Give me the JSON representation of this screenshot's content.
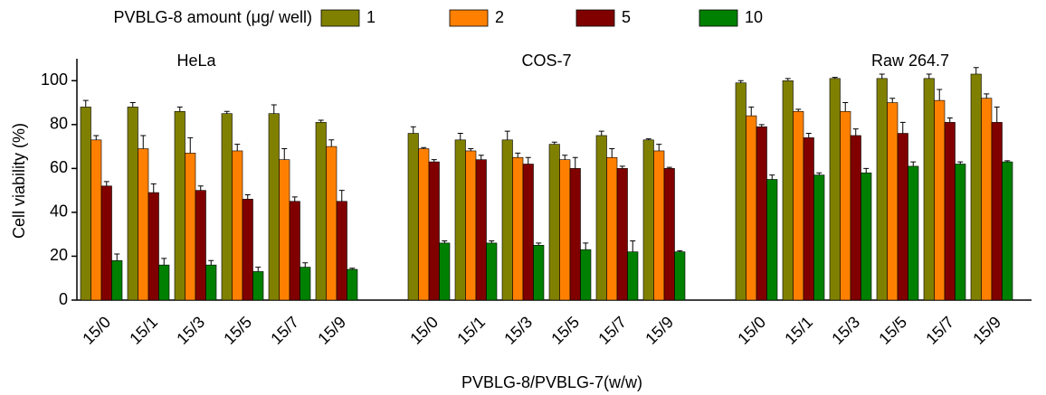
{
  "chart_data": {
    "type": "bar",
    "x_label": "PVBLG-8/PVBLG-7(w/w)",
    "y_label": "Cell viability (%)",
    "legend_title": "PVBLG-8 amount (μg/ well)",
    "group_labels": [
      "HeLa",
      "COS-7",
      "Raw 264.7"
    ],
    "group_size": 6,
    "categories": [
      "15/0",
      "15/1",
      "15/3",
      "15/5",
      "15/7",
      "15/9",
      "15/0",
      "15/1",
      "15/3",
      "15/5",
      "15/7",
      "15/9",
      "15/0",
      "15/1",
      "15/3",
      "15/5",
      "15/7",
      "15/9"
    ],
    "series": [
      {
        "name": "1",
        "color": "#808000",
        "values": [
          88,
          88,
          86,
          85,
          85,
          81,
          76,
          73,
          73,
          71,
          75,
          73,
          99,
          100,
          101,
          101,
          101,
          103
        ],
        "errors": [
          3,
          2,
          2,
          1,
          4,
          1,
          3,
          3,
          4,
          1,
          2,
          0.5,
          1,
          1,
          0.5,
          2,
          2,
          3
        ]
      },
      {
        "name": "2",
        "color": "#ff8000",
        "values": [
          73,
          69,
          67,
          68,
          64,
          70,
          69,
          68,
          65,
          64,
          65,
          68,
          84,
          86,
          86,
          90,
          91,
          92
        ],
        "errors": [
          2,
          6,
          7,
          3,
          5,
          3,
          0.5,
          1,
          2,
          2,
          4,
          3,
          4,
          1,
          4,
          2,
          5,
          2
        ]
      },
      {
        "name": "5",
        "color": "#800000",
        "values": [
          52,
          49,
          50,
          46,
          45,
          45,
          63,
          64,
          62,
          60,
          60,
          60,
          79,
          74,
          75,
          76,
          81,
          81
        ],
        "errors": [
          2,
          4,
          2,
          2,
          2,
          5,
          1,
          2,
          3,
          5,
          1,
          0.5,
          1,
          2,
          3,
          5,
          2,
          7
        ]
      },
      {
        "name": "10",
        "color": "#008000",
        "values": [
          18,
          16,
          16,
          13,
          15,
          14,
          26,
          26,
          25,
          23,
          22,
          22,
          55,
          57,
          58,
          61,
          62,
          63
        ],
        "errors": [
          3,
          3,
          2,
          2,
          2,
          0.5,
          1,
          1,
          1,
          3,
          5,
          0.5,
          2,
          1,
          2,
          2,
          1,
          0.5
        ]
      }
    ],
    "ylim": [
      0,
      110
    ],
    "yticks": [
      0,
      20,
      40,
      60,
      80,
      100
    ]
  }
}
